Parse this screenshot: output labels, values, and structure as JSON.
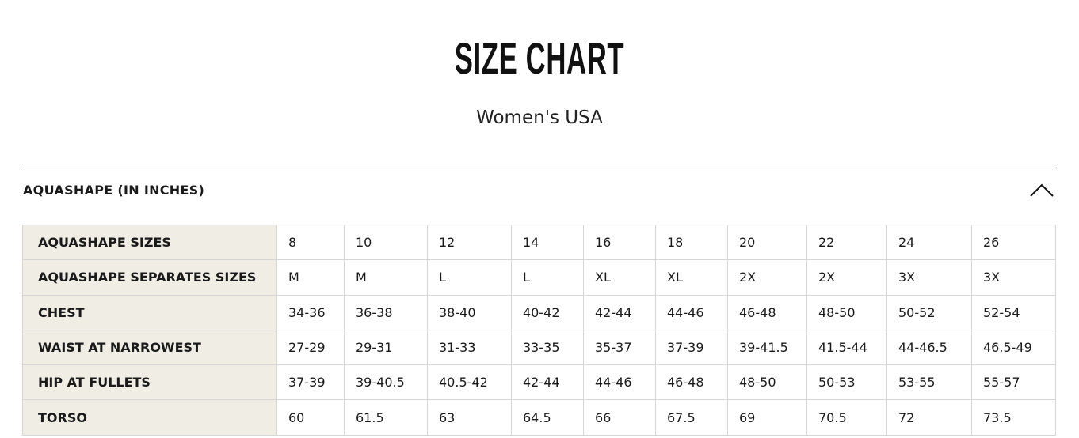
{
  "title": "SIZE CHART",
  "subtitle": "Women's USA",
  "section": {
    "title": "AQUASHAPE (IN INCHES)",
    "toggle_icon": "chevron-up-icon",
    "expanded": true
  },
  "table": {
    "rows": [
      {
        "label": "AQUASHAPE SIZES",
        "values": [
          "8",
          "10",
          "12",
          "14",
          "16",
          "18",
          "20",
          "22",
          "24",
          "26"
        ]
      },
      {
        "label": "AQUASHAPE SEPARATES SIZES",
        "values": [
          "M",
          "M",
          "L",
          "L",
          "XL",
          "XL",
          "2X",
          "2X",
          "3X",
          "3X"
        ]
      },
      {
        "label": "CHEST",
        "values": [
          "34-36",
          "36-38",
          "38-40",
          "40-42",
          "42-44",
          "44-46",
          "46-48",
          "48-50",
          "50-52",
          "52-54"
        ]
      },
      {
        "label": "WAIST AT NARROWEST",
        "values": [
          "27-29",
          "29-31",
          "31-33",
          "33-35",
          "35-37",
          "37-39",
          "39-41.5",
          "41.5-44",
          "44-46.5",
          "46.5-49"
        ]
      },
      {
        "label": "HIP AT FULLETS",
        "values": [
          "37-39",
          "39-40.5",
          "40.5-42",
          "42-44",
          "44-46",
          "46-48",
          "48-50",
          "50-53",
          "53-55",
          "55-57"
        ]
      },
      {
        "label": "TORSO",
        "values": [
          "60",
          "61.5",
          "63",
          "64.5",
          "66",
          "67.5",
          "69",
          "70.5",
          "72",
          "73.5"
        ]
      }
    ]
  },
  "colors": {
    "label_bg": "#f0ede5",
    "border": "#d6d6d6"
  }
}
